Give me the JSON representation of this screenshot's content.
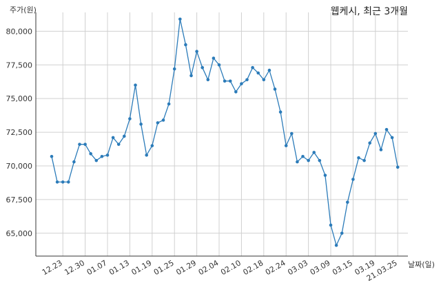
{
  "chart_data": {
    "type": "line",
    "title": "웹케시, 최근 3개월",
    "xlabel": "날짜(일)",
    "ylabel": "주가(원)",
    "grid": true,
    "ylim": [
      63300,
      81400
    ],
    "yticks": [
      65000,
      67500,
      70000,
      72500,
      75000,
      77500,
      80000
    ],
    "ytick_labels": [
      "65,000",
      "67,500",
      "70,000",
      "72,500",
      "75,000",
      "77,500",
      "80,000"
    ],
    "xtick_labels": [
      "12.23",
      "12.30",
      "01.07",
      "01.13",
      "01.19",
      "01.25",
      "01.29",
      "02.04",
      "02.10",
      "02.18",
      "02.24",
      "03.03",
      "03.09",
      "03.15",
      "03.19",
      "21.03.25"
    ],
    "xtick_indices": [
      2,
      6,
      10,
      14,
      18,
      22,
      26,
      30,
      34,
      38,
      42,
      46,
      50,
      54,
      58,
      62
    ],
    "series": [
      {
        "values": [
          70700,
          68800,
          68800,
          68800,
          70300,
          71600,
          71600,
          70900,
          70400,
          70700,
          70800,
          72100,
          71600,
          72200,
          73500,
          76000,
          73100,
          70800,
          71500,
          73200,
          73400,
          74600,
          77200,
          80900,
          79000,
          76700,
          78500,
          77300,
          76400,
          78000,
          77500,
          76300,
          76300,
          75500,
          76100,
          76400,
          77300,
          76900,
          76400,
          77100,
          75700,
          74000,
          71500,
          72400,
          70300,
          70700,
          70400,
          71000,
          70400,
          69300,
          65600,
          64100,
          65000,
          67300,
          69000,
          70600,
          70400,
          71700,
          72400,
          71200,
          72700,
          72100,
          69900
        ]
      }
    ]
  }
}
